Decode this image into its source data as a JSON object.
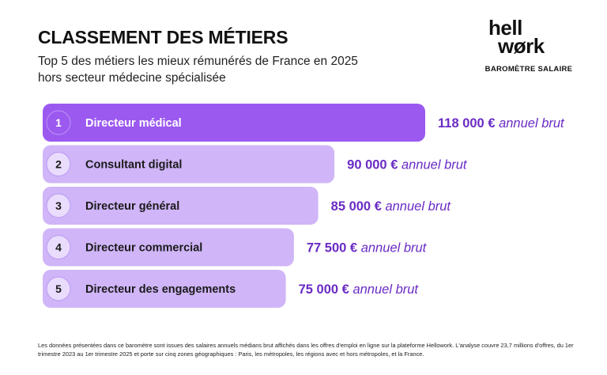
{
  "header": {
    "title": "CLASSEMENT DES MÉTIERS",
    "subtitle_line1": "Top 5 des métiers les mieux rémunérés de France en 2025",
    "subtitle_line2": "hors secteur médecine spécialisée"
  },
  "logo": {
    "word_line1": "hell",
    "word_line2": "wørk",
    "tagline": "BAROMÈTRE SALAIRE"
  },
  "colors": {
    "accent": "#9B59F0",
    "bar_light": "#D0B5F8",
    "value_text": "#6A2BC4",
    "circle_light": "#E9DCFC"
  },
  "chart_data": {
    "type": "bar",
    "orientation": "horizontal",
    "categories": [
      "Directeur médical",
      "Consultant digital",
      "Directeur général",
      "Directeur commercial",
      "Directeur des engagements"
    ],
    "ranks": [
      "1",
      "2",
      "3",
      "4",
      "5"
    ],
    "values": [
      118000,
      90000,
      85000,
      77500,
      75000
    ],
    "value_labels": [
      "118 000 €",
      "90 000 €",
      "85 000 €",
      "77 500 €",
      "75 000 €"
    ],
    "unit_label": "annuel brut",
    "highlight_index": 0
  },
  "footnote": "Les données présentées dans ce baromètre sont issues des salaires annuels médians brut affichés dans les offres d'emploi en ligne sur la plateforme Hellowork. L'analyse couvre 23,7 millions d'offres, du 1er trimestre 2023 au 1er trimestre 2025 et porte sur cinq zones géographiques : Paris, les métropoles, les régions avec et hors métropoles, et la France."
}
